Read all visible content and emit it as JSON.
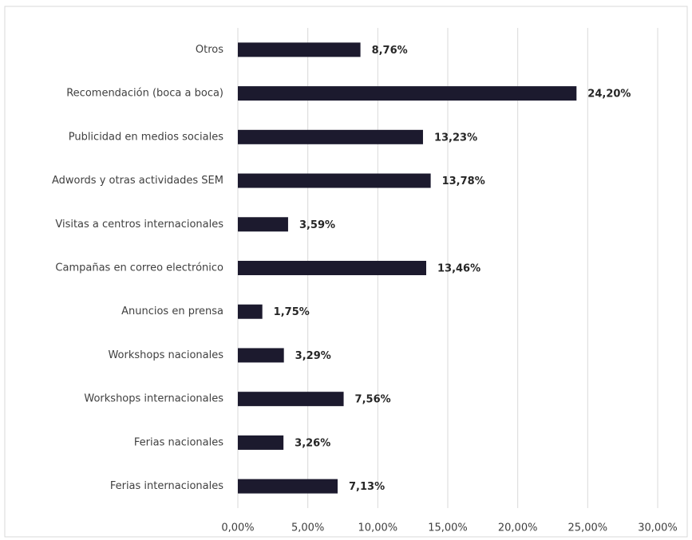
{
  "chart_data": {
    "type": "bar",
    "orientation": "horizontal",
    "categories": [
      "Otros",
      "Recomendación (boca a boca)",
      "Publicidad en medios sociales",
      "Adwords y otras actividades SEM",
      "Visitas a centros internacionales",
      "Campañas en correo electrónico",
      "Anuncios en prensa",
      "Workshops nacionales",
      "Workshops internacionales",
      "Ferias nacionales",
      "Ferias internacionales"
    ],
    "values": [
      8.76,
      24.2,
      13.23,
      13.78,
      3.59,
      13.46,
      1.75,
      3.29,
      7.56,
      3.26,
      7.13
    ],
    "value_labels": [
      "8,76%",
      "24,20%",
      "13,23%",
      "13,78%",
      "3,59%",
      "13,46%",
      "1,75%",
      "3,29%",
      "7,56%",
      "3,26%",
      "7,13%"
    ],
    "color": "#1c1a2e",
    "xlim": [
      0,
      30
    ],
    "xticks": [
      {
        "value": 0,
        "label": "0,00%"
      },
      {
        "value": 5,
        "label": "5,00%"
      },
      {
        "value": 10,
        "label": "10,00%"
      },
      {
        "value": 15,
        "label": "15,00%"
      },
      {
        "value": 20,
        "label": "20,00%"
      },
      {
        "value": 25,
        "label": "25,00%"
      },
      {
        "value": 30,
        "label": "30,00%"
      }
    ],
    "grid": true
  }
}
